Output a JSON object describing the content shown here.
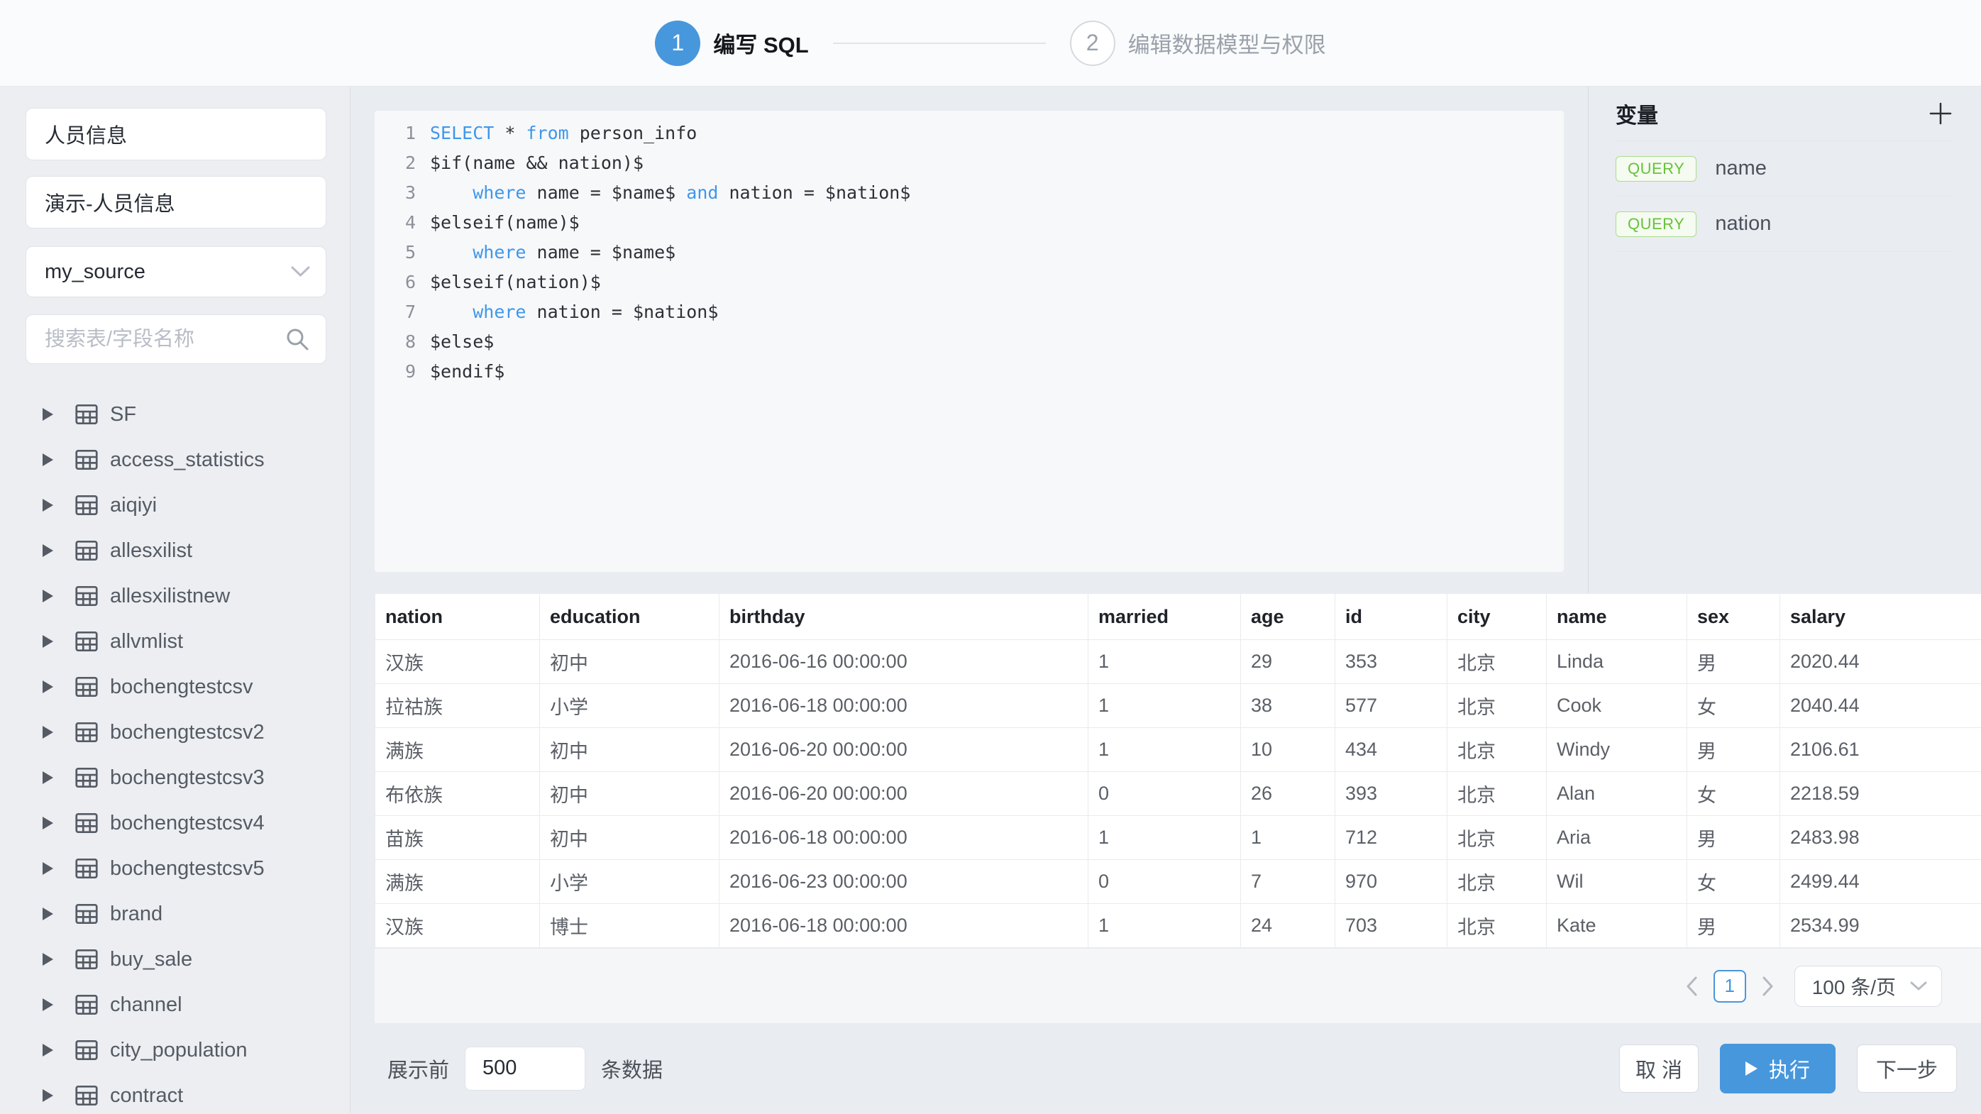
{
  "stepper": {
    "step1_num": "1",
    "step1_label": "编写 SQL",
    "step2_num": "2",
    "step2_label": "编辑数据模型与权限"
  },
  "sidebar": {
    "dataset_name": "人员信息",
    "dataset_display_name": "演示-人员信息",
    "datasource": "my_source",
    "search_placeholder": "搜索表/字段名称",
    "tables": [
      "SF",
      "access_statistics",
      "aiqiyi",
      "allesxilist",
      "allesxilistnew",
      "allvmlist",
      "bochengtestcsv",
      "bochengtestcsv2",
      "bochengtestcsv3",
      "bochengtestcsv4",
      "bochengtestcsv5",
      "brand",
      "buy_sale",
      "channel",
      "city_population",
      "contract"
    ]
  },
  "editor": {
    "lines": [
      [
        {
          "t": "SELECT",
          "k": true
        },
        {
          "t": " * "
        },
        {
          "t": "from",
          "k": true
        },
        {
          "t": " person_info"
        }
      ],
      [
        {
          "t": "$if(name && nation)$"
        }
      ],
      [
        {
          "t": "    "
        },
        {
          "t": "where",
          "k": true
        },
        {
          "t": " name = $name$ "
        },
        {
          "t": "and",
          "k": true
        },
        {
          "t": " nation = $nation$"
        }
      ],
      [
        {
          "t": "$elseif(name)$"
        }
      ],
      [
        {
          "t": "    "
        },
        {
          "t": "where",
          "k": true
        },
        {
          "t": " name = $name$"
        }
      ],
      [
        {
          "t": "$elseif(nation)$"
        }
      ],
      [
        {
          "t": "    "
        },
        {
          "t": "where",
          "k": true
        },
        {
          "t": " nation = $nation$"
        }
      ],
      [
        {
          "t": "$else$"
        }
      ],
      [
        {
          "t": "$endif$"
        }
      ]
    ]
  },
  "variables": {
    "title": "变量",
    "add_icon": "plus-icon",
    "items": [
      {
        "tag": "QUERY",
        "name": "name"
      },
      {
        "tag": "QUERY",
        "name": "nation"
      }
    ]
  },
  "result_table": {
    "columns": [
      "nation",
      "education",
      "birthday",
      "married",
      "age",
      "id",
      "city",
      "name",
      "sex",
      "salary"
    ],
    "rows": [
      [
        "汉族",
        "初中",
        "2016-06-16 00:00:00",
        "1",
        "29",
        "353",
        "北京",
        "Linda",
        "男",
        "2020.44"
      ],
      [
        "拉祜族",
        "小学",
        "2016-06-18 00:00:00",
        "1",
        "38",
        "577",
        "北京",
        "Cook",
        "女",
        "2040.44"
      ],
      [
        "满族",
        "初中",
        "2016-06-20 00:00:00",
        "1",
        "10",
        "434",
        "北京",
        "Windy",
        "男",
        "2106.61"
      ],
      [
        "布依族",
        "初中",
        "2016-06-20 00:00:00",
        "0",
        "26",
        "393",
        "北京",
        "Alan",
        "女",
        "2218.59"
      ],
      [
        "苗族",
        "初中",
        "2016-06-18 00:00:00",
        "1",
        "1",
        "712",
        "北京",
        "Aria",
        "男",
        "2483.98"
      ],
      [
        "满族",
        "小学",
        "2016-06-23 00:00:00",
        "0",
        "7",
        "970",
        "北京",
        "Wil",
        "女",
        "2499.44"
      ],
      [
        "汉族",
        "博士",
        "2016-06-18 00:00:00",
        "1",
        "24",
        "703",
        "北京",
        "Kate",
        "男",
        "2534.99"
      ]
    ]
  },
  "pagination": {
    "prev_icon": "chevron-left",
    "current_page": "1",
    "next_icon": "chevron-right",
    "page_size": "100 条/页"
  },
  "footer": {
    "limit_prefix": "展示前",
    "limit_value": "500",
    "limit_suffix": "条数据",
    "cancel": "取 消",
    "run": "执行",
    "next": "下一步"
  },
  "colors": {
    "accent": "#4797dd",
    "keyword": "#3f97ea",
    "badge_green": "#67c23a"
  }
}
